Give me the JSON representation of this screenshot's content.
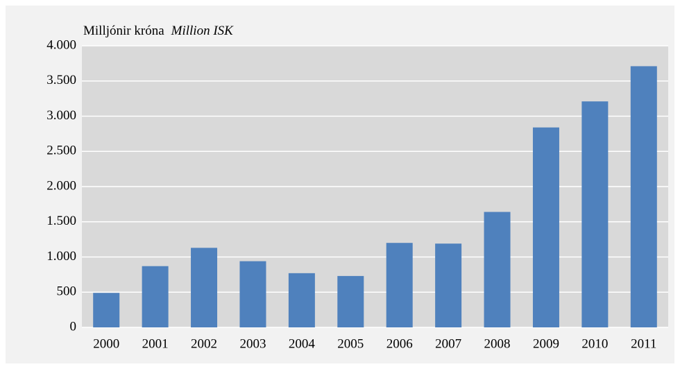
{
  "chart_data": {
    "type": "bar",
    "ylabel": "Milljónir króna",
    "ylabel_en": "Million ISK",
    "categories": [
      "2000",
      "2001",
      "2002",
      "2003",
      "2004",
      "2005",
      "2006",
      "2007",
      "2008",
      "2009",
      "2010",
      "2011"
    ],
    "values": [
      490,
      870,
      1130,
      940,
      770,
      730,
      1200,
      1190,
      1640,
      2840,
      3210,
      3710
    ],
    "color": "#4f81bd",
    "ylim": [
      0,
      4000
    ],
    "yticks": [
      0,
      500,
      {
        "value": 1000,
        "label": "1.000"
      },
      {
        "value": 1500,
        "label": "1.500"
      },
      {
        "value": 2000,
        "label": "2.000"
      },
      {
        "value": 2500,
        "label": "2.500"
      },
      {
        "value": 3000,
        "label": "3.000"
      },
      {
        "value": 3500,
        "label": "3.500"
      },
      {
        "value": 4000,
        "label": "4.000"
      }
    ],
    "grid": true
  }
}
